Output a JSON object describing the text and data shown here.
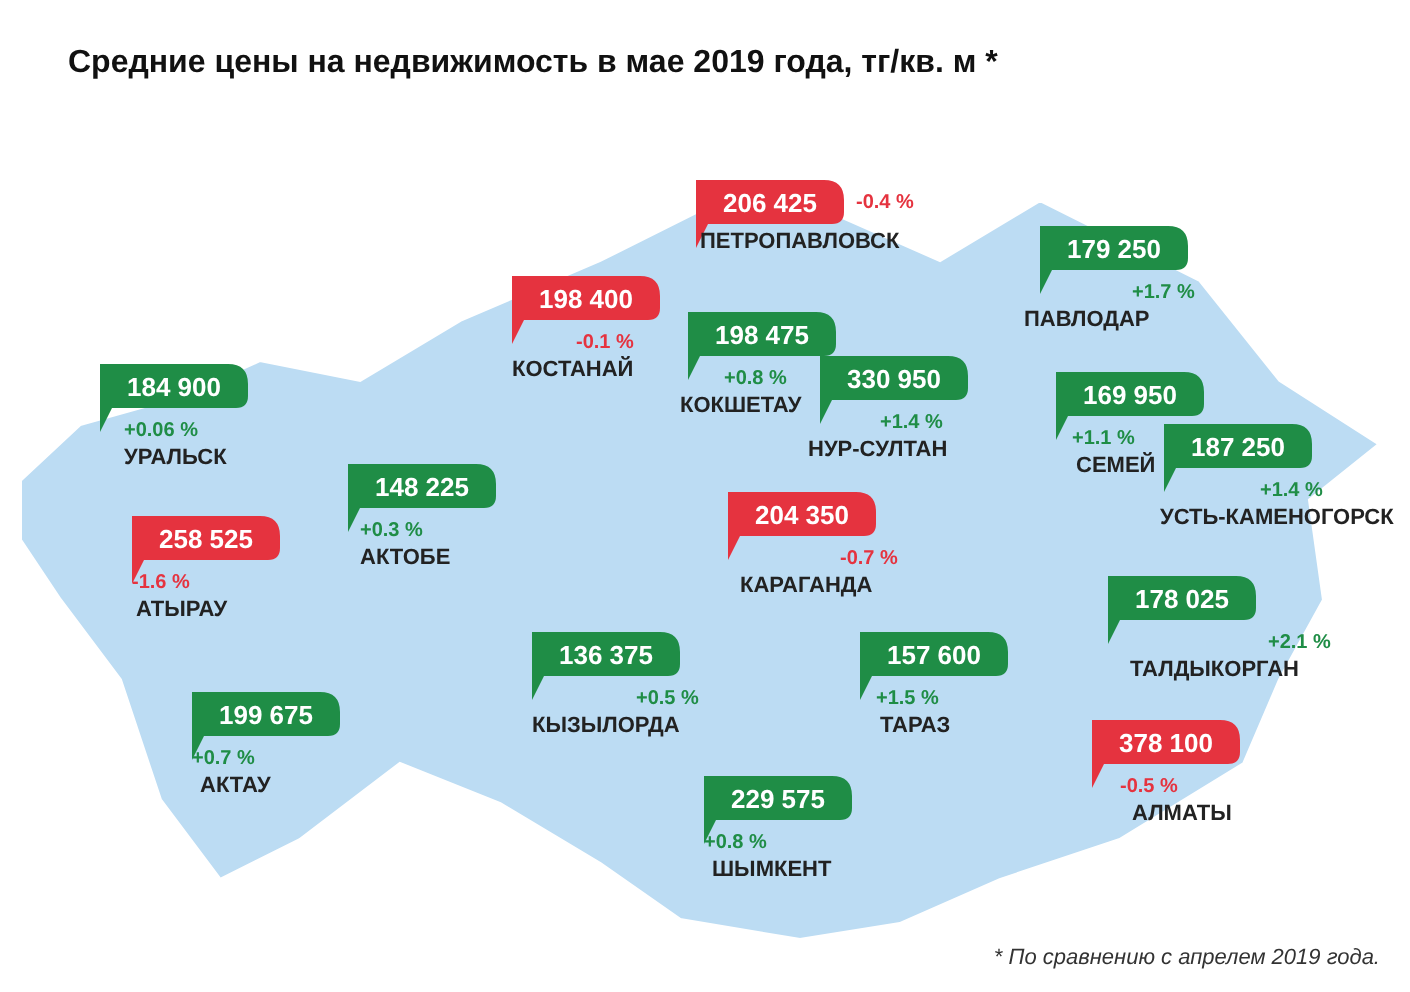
{
  "chart_data": {
    "type": "other",
    "title": "Средние цены на недвижимость в мае 2019 года, тг/кв. м *",
    "data_labels": true,
    "categories": [
      "ПЕТРОПАВЛОВСК",
      "КОСТАНАЙ",
      "КОКШЕТАУ",
      "ПАВЛОДАР",
      "НУР-СУЛТАН",
      "УРАЛЬСК",
      "СЕМЕЙ",
      "АКТОБЕ",
      "УСТЬ-КАМЕНОГОРСК",
      "АТЫРАУ",
      "КАРАГАНДА",
      "ТАЛДЫКОРГАН",
      "КЫЗЫЛОРДА",
      "ТАРАЗ",
      "АКТАУ",
      "АЛМАТЫ",
      "ШЫМКЕНТ"
    ],
    "series": [
      {
        "values": [
          206425,
          198400,
          198475,
          179250,
          330950,
          184900,
          169950,
          148225,
          187250,
          258525,
          204350,
          178025,
          136375,
          157600,
          199675,
          378100,
          229575
        ],
        "colors": [
          "#e5333f",
          "#e5333f",
          "#1f8d46",
          "#1f8d46",
          "#1f8d46",
          "#1f8d46",
          "#1f8d46",
          "#1f8d46",
          "#1f8d46",
          "#e5333f",
          "#e5333f",
          "#1f8d46",
          "#1f8d46",
          "#1f8d46",
          "#1f8d46",
          "#e5333f",
          "#1f8d46"
        ]
      },
      {
        "values": [
          -0.4,
          -0.1,
          0.8,
          1.7,
          1.4,
          0.06,
          1.1,
          0.3,
          1.4,
          -1.6,
          -0.7,
          2.1,
          0.5,
          1.5,
          0.7,
          -0.5,
          0.8
        ],
        "value_labels": [
          "-0.4 %",
          "-0.1 %",
          "+0.8 %",
          "+1.7 %",
          "+1.4 %",
          "+0.06 %",
          "+1.1 %",
          "+0.3 %",
          "+1.4 %",
          "-1.6 %",
          "-0.7 %",
          "+2.1 %",
          "+0.5 %",
          "+1.5 %",
          "+0.7 %",
          "-0.5 %",
          "+0.8 %"
        ],
        "colors": [
          "#e5333f",
          "#e5333f",
          "#1f8d46",
          "#1f8d46",
          "#1f8d46",
          "#1f8d46",
          "#1f8d46",
          "#1f8d46",
          "#1f8d46",
          "#e5333f",
          "#e5333f",
          "#1f8d46",
          "#1f8d46",
          "#1f8d46",
          "#1f8d46",
          "#e5333f",
          "#1f8d46"
        ]
      }
    ],
    "annotations": [
      "* По сравнению с апрелем 2019 года."
    ]
  }
}
